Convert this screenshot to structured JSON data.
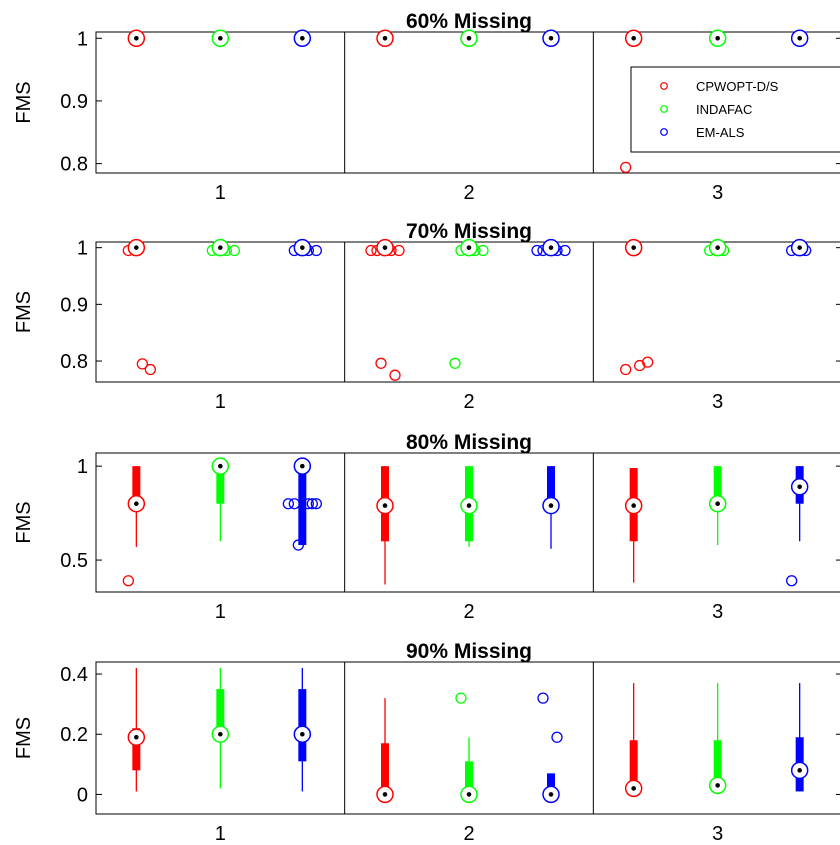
{
  "chart_data": {
    "type": "box",
    "legend_placement": "top-right of first panel",
    "series": [
      {
        "name": "CPWOPT-D/S",
        "color": "#ff0000"
      },
      {
        "name": "INDAFAC",
        "color": "#00ff00"
      },
      {
        "name": "EM-ALS",
        "color": "#0000ff"
      }
    ],
    "categories": [
      "1",
      "2",
      "3"
    ],
    "panels": [
      {
        "title": "60% Missing",
        "ylabel": "FMS",
        "ylim": [
          0.785,
          1.01
        ],
        "yticks": [
          {
            "value": 1,
            "label": "1"
          },
          {
            "value": 0.9,
            "label": "0.9"
          },
          {
            "value": 0.8,
            "label": "0.8"
          }
        ],
        "legend": true,
        "boxes": [
          [
            {
              "q1": 1,
              "median": 1,
              "q3": 1,
              "whisker_low": 1,
              "whisker_high": 1,
              "outliers": []
            },
            {
              "q1": 1,
              "median": 1,
              "q3": 1,
              "whisker_low": 1,
              "whisker_high": 1,
              "outliers": []
            },
            {
              "q1": 1,
              "median": 1,
              "q3": 1,
              "whisker_low": 1,
              "whisker_high": 1,
              "outliers": []
            }
          ],
          [
            {
              "q1": 1,
              "median": 1,
              "q3": 1,
              "whisker_low": 1,
              "whisker_high": 1,
              "outliers": []
            },
            {
              "q1": 1,
              "median": 1,
              "q3": 1,
              "whisker_low": 1,
              "whisker_high": 1,
              "outliers": []
            },
            {
              "q1": 1,
              "median": 1,
              "q3": 1,
              "whisker_low": 1,
              "whisker_high": 1,
              "outliers": []
            }
          ],
          [
            {
              "q1": 1,
              "median": 1,
              "q3": 1,
              "whisker_low": 1,
              "whisker_high": 1,
              "outliers": [
                0.794
              ]
            },
            {
              "q1": 1,
              "median": 1,
              "q3": 1,
              "whisker_low": 1,
              "whisker_high": 1,
              "outliers": []
            },
            {
              "q1": 1,
              "median": 1,
              "q3": 1,
              "whisker_low": 1,
              "whisker_high": 1,
              "outliers": []
            }
          ]
        ]
      },
      {
        "title": "70% Missing",
        "ylabel": "FMS",
        "ylim": [
          0.763,
          1.01
        ],
        "yticks": [
          {
            "value": 1,
            "label": "1"
          },
          {
            "value": 0.9,
            "label": "0.9"
          },
          {
            "value": 0.8,
            "label": "0.8"
          }
        ],
        "legend": false,
        "boxes": [
          [
            {
              "q1": 1,
              "median": 1,
              "q3": 1,
              "whisker_low": 1,
              "whisker_high": 1,
              "outliers": [
                0.995,
                0.795,
                0.785
              ]
            },
            {
              "q1": 1,
              "median": 1,
              "q3": 1,
              "whisker_low": 1,
              "whisker_high": 1,
              "outliers": [
                0.995,
                0.995,
                0.995
              ]
            },
            {
              "q1": 1,
              "median": 1,
              "q3": 1,
              "whisker_low": 1,
              "whisker_high": 1,
              "outliers": [
                0.995,
                0.995,
                0.995
              ]
            }
          ],
          [
            {
              "q1": 1,
              "median": 1,
              "q3": 1,
              "whisker_low": 1,
              "whisker_high": 1,
              "outliers": [
                0.995,
                0.995,
                0.995,
                0.995,
                0.775,
                0.796
              ]
            },
            {
              "q1": 1,
              "median": 1,
              "q3": 1,
              "whisker_low": 1,
              "whisker_high": 1,
              "outliers": [
                0.995,
                0.995,
                0.995,
                0.796
              ]
            },
            {
              "q1": 1,
              "median": 1,
              "q3": 1,
              "whisker_low": 1,
              "whisker_high": 1,
              "outliers": [
                0.995,
                0.995,
                0.995,
                0.995
              ]
            }
          ],
          [
            {
              "q1": 1,
              "median": 1,
              "q3": 1,
              "whisker_low": 1,
              "whisker_high": 1,
              "outliers": [
                0.785,
                0.792,
                0.798
              ]
            },
            {
              "q1": 1,
              "median": 1,
              "q3": 1,
              "whisker_low": 1,
              "whisker_high": 1,
              "outliers": [
                0.995,
                0.995
              ]
            },
            {
              "q1": 1,
              "median": 1,
              "q3": 1,
              "whisker_low": 1,
              "whisker_high": 1,
              "outliers": [
                0.995,
                0.995
              ]
            }
          ]
        ]
      },
      {
        "title": "80% Missing",
        "ylabel": "FMS",
        "ylim": [
          0.33,
          1.07
        ],
        "yticks": [
          {
            "value": 1,
            "label": "1"
          },
          {
            "value": 0.5,
            "label": "0.5"
          }
        ],
        "legend": false,
        "boxes": [
          [
            {
              "q1": 0.8,
              "median": 0.8,
              "q3": 1,
              "whisker_low": 0.57,
              "whisker_high": 1,
              "outliers": [
                0.39
              ]
            },
            {
              "q1": 0.8,
              "median": 1,
              "q3": 1,
              "whisker_low": 0.6,
              "whisker_high": 1,
              "outliers": []
            },
            {
              "q1": 0.58,
              "median": 1,
              "q3": 1,
              "whisker_low": 0.58,
              "whisker_high": 1,
              "outliers": [
                0.8,
                0.8,
                0.8,
                0.8,
                0.8,
                0.58
              ]
            }
          ],
          [
            {
              "q1": 0.6,
              "median": 0.79,
              "q3": 1,
              "whisker_low": 0.37,
              "whisker_high": 1,
              "outliers": []
            },
            {
              "q1": 0.6,
              "median": 0.79,
              "q3": 1,
              "whisker_low": 0.57,
              "whisker_high": 1,
              "outliers": []
            },
            {
              "q1": 0.79,
              "median": 0.79,
              "q3": 1,
              "whisker_low": 0.56,
              "whisker_high": 1,
              "outliers": []
            }
          ],
          [
            {
              "q1": 0.6,
              "median": 0.79,
              "q3": 0.99,
              "whisker_low": 0.38,
              "whisker_high": 0.99,
              "outliers": []
            },
            {
              "q1": 0.8,
              "median": 0.8,
              "q3": 1,
              "whisker_low": 0.58,
              "whisker_high": 1,
              "outliers": []
            },
            {
              "q1": 0.8,
              "median": 0.89,
              "q3": 1,
              "whisker_low": 0.6,
              "whisker_high": 1,
              "outliers": [
                0.39
              ]
            }
          ]
        ]
      },
      {
        "title": "90% Missing",
        "ylabel": "FMS",
        "ylim": [
          -0.065,
          0.44
        ],
        "yticks": [
          {
            "value": 0.4,
            "label": "0.4"
          },
          {
            "value": 0.2,
            "label": "0.2"
          },
          {
            "value": 0,
            "label": "0"
          }
        ],
        "legend": false,
        "boxes": [
          [
            {
              "q1": 0.08,
              "median": 0.19,
              "q3": 0.22,
              "whisker_low": 0.01,
              "whisker_high": 0.42,
              "outliers": []
            },
            {
              "q1": 0.2,
              "median": 0.2,
              "q3": 0.35,
              "whisker_low": 0.02,
              "whisker_high": 0.42,
              "outliers": []
            },
            {
              "q1": 0.11,
              "median": 0.2,
              "q3": 0.35,
              "whisker_low": 0.01,
              "whisker_high": 0.42,
              "outliers": []
            }
          ],
          [
            {
              "q1": 0,
              "median": 0,
              "q3": 0.17,
              "whisker_low": 0,
              "whisker_high": 0.32,
              "outliers": []
            },
            {
              "q1": 0,
              "median": 0,
              "q3": 0.11,
              "whisker_low": 0,
              "whisker_high": 0.19,
              "outliers": [
                0.32
              ]
            },
            {
              "q1": 0,
              "median": 0,
              "q3": 0.07,
              "whisker_low": 0,
              "whisker_high": 0.07,
              "outliers": [
                0.32,
                0.19
              ]
            }
          ],
          [
            {
              "q1": 0,
              "median": 0.02,
              "q3": 0.18,
              "whisker_low": 0,
              "whisker_high": 0.37,
              "outliers": []
            },
            {
              "q1": 0.03,
              "median": 0.03,
              "q3": 0.18,
              "whisker_low": 0,
              "whisker_high": 0.37,
              "outliers": []
            },
            {
              "q1": 0.01,
              "median": 0.08,
              "q3": 0.19,
              "whisker_low": 0.01,
              "whisker_high": 0.37,
              "outliers": []
            }
          ]
        ]
      }
    ]
  }
}
